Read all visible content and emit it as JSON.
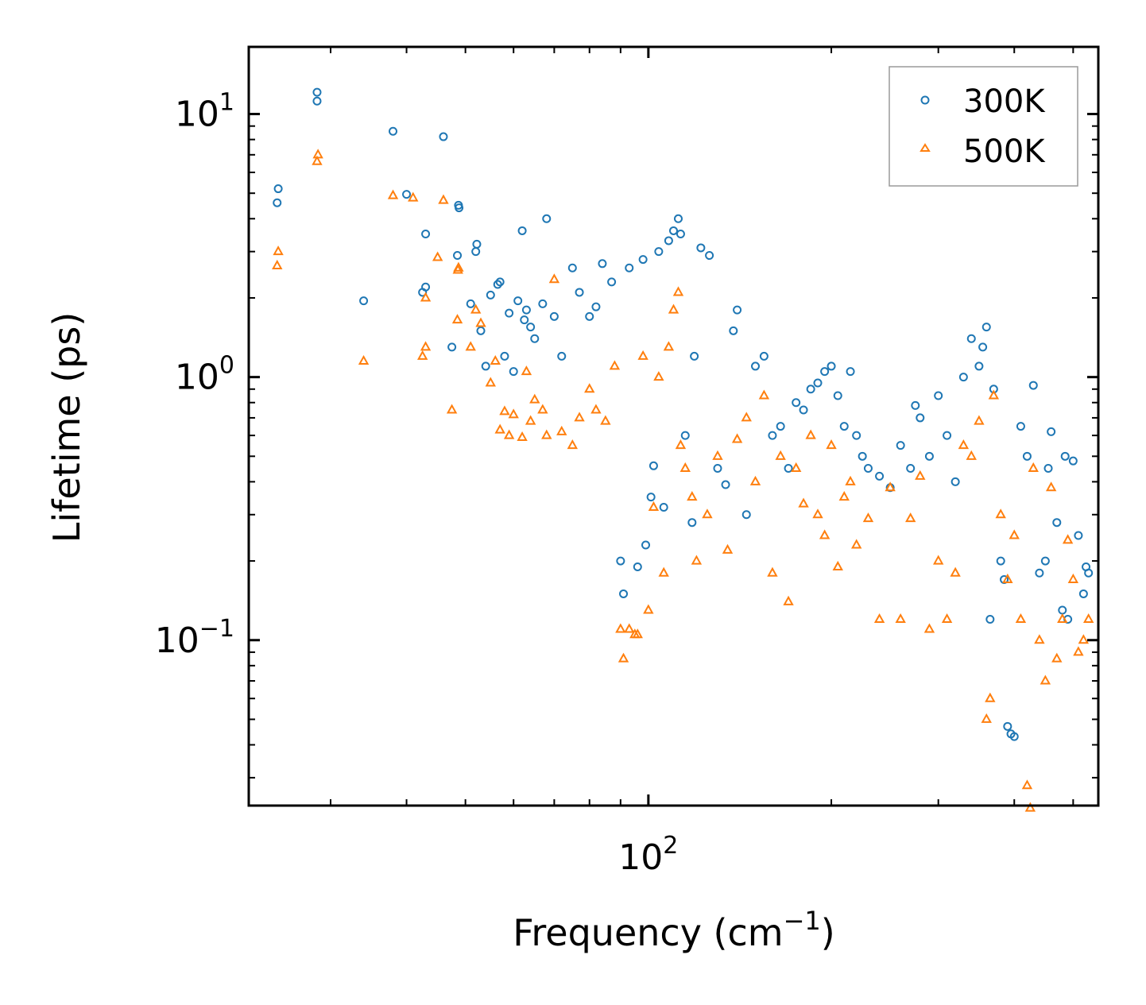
{
  "chart_data": {
    "type": "scatter",
    "title": "",
    "xlabel": "Frequency (cm⁻¹)",
    "xlabel_main": "Frequency (cm",
    "xlabel_sup": "−1",
    "xlabel_close": ")",
    "ylabel": "Lifetime (ps)",
    "xscale": "log",
    "yscale": "log",
    "xlim": [
      22,
      550
    ],
    "ylim": [
      0.0235,
      18
    ],
    "x_ticks": [
      {
        "value": 100,
        "base": "10",
        "exp": "2"
      }
    ],
    "y_ticks": [
      {
        "value": 10,
        "base": "10",
        "exp": "1"
      },
      {
        "value": 1,
        "base": "10",
        "exp": "0"
      },
      {
        "value": 0.1,
        "base": "10",
        "exp": "−1"
      }
    ],
    "legend_position": "top-right",
    "series": [
      {
        "name": "300K",
        "marker": "circle",
        "color": "#1f77b4",
        "points": [
          [
            24.5,
            4.6
          ],
          [
            24.6,
            5.2
          ],
          [
            28.5,
            11.2
          ],
          [
            28.5,
            12.1
          ],
          [
            34,
            1.95
          ],
          [
            38,
            8.6
          ],
          [
            40,
            4.95
          ],
          [
            42.5,
            2.1
          ],
          [
            43,
            2.2
          ],
          [
            43,
            3.5
          ],
          [
            46,
            8.2
          ],
          [
            47.5,
            1.3
          ],
          [
            48.5,
            2.9
          ],
          [
            48.7,
            4.5
          ],
          [
            48.8,
            4.4
          ],
          [
            51,
            1.9
          ],
          [
            52,
            3.0
          ],
          [
            52.2,
            3.2
          ],
          [
            53,
            1.5
          ],
          [
            54,
            1.1
          ],
          [
            55,
            2.05
          ],
          [
            56.5,
            2.25
          ],
          [
            57,
            2.3
          ],
          [
            58,
            1.2
          ],
          [
            59,
            1.75
          ],
          [
            60,
            1.05
          ],
          [
            61,
            1.95
          ],
          [
            62,
            3.6
          ],
          [
            62.5,
            1.65
          ],
          [
            63,
            1.8
          ],
          [
            64,
            1.55
          ],
          [
            65,
            1.4
          ],
          [
            67,
            1.9
          ],
          [
            68,
            4.0
          ],
          [
            70,
            1.7
          ],
          [
            72,
            1.2
          ],
          [
            75,
            2.6
          ],
          [
            77,
            2.1
          ],
          [
            80,
            1.7
          ],
          [
            82,
            1.85
          ],
          [
            84,
            2.7
          ],
          [
            87,
            2.3
          ],
          [
            90,
            0.2
          ],
          [
            91,
            0.15
          ],
          [
            93,
            2.6
          ],
          [
            96,
            0.19
          ],
          [
            98,
            2.8
          ],
          [
            99,
            0.23
          ],
          [
            101,
            0.35
          ],
          [
            102,
            0.46
          ],
          [
            104,
            3.0
          ],
          [
            106,
            0.32
          ],
          [
            108,
            3.3
          ],
          [
            110,
            3.6
          ],
          [
            112,
            4.0
          ],
          [
            113,
            3.5
          ],
          [
            115,
            0.6
          ],
          [
            118,
            0.28
          ],
          [
            119,
            1.2
          ],
          [
            122,
            3.1
          ],
          [
            126,
            2.9
          ],
          [
            130,
            0.45
          ],
          [
            134,
            0.39
          ],
          [
            138,
            1.5
          ],
          [
            140,
            1.8
          ],
          [
            145,
            0.3
          ],
          [
            150,
            1.1
          ],
          [
            155,
            1.2
          ],
          [
            160,
            0.6
          ],
          [
            165,
            0.65
          ],
          [
            170,
            0.45
          ],
          [
            175,
            0.8
          ],
          [
            180,
            0.75
          ],
          [
            185,
            0.9
          ],
          [
            190,
            0.95
          ],
          [
            195,
            1.05
          ],
          [
            200,
            1.1
          ],
          [
            205,
            0.85
          ],
          [
            210,
            0.65
          ],
          [
            215,
            1.05
          ],
          [
            220,
            0.6
          ],
          [
            225,
            0.5
          ],
          [
            230,
            0.45
          ],
          [
            240,
            0.42
          ],
          [
            250,
            0.38
          ],
          [
            260,
            0.55
          ],
          [
            270,
            0.45
          ],
          [
            275,
            0.78
          ],
          [
            280,
            0.7
          ],
          [
            290,
            0.5
          ],
          [
            300,
            0.85
          ],
          [
            310,
            0.6
          ],
          [
            320,
            0.4
          ],
          [
            330,
            1.0
          ],
          [
            340,
            1.4
          ],
          [
            350,
            1.1
          ],
          [
            355,
            1.3
          ],
          [
            360,
            1.55
          ],
          [
            365,
            0.12
          ],
          [
            370,
            0.9
          ],
          [
            380,
            0.2
          ],
          [
            385,
            0.17
          ],
          [
            390,
            0.047
          ],
          [
            395,
            0.044
          ],
          [
            400,
            0.043
          ],
          [
            410,
            0.65
          ],
          [
            420,
            0.5
          ],
          [
            430,
            0.93
          ],
          [
            440,
            0.18
          ],
          [
            450,
            0.2
          ],
          [
            455,
            0.45
          ],
          [
            460,
            0.62
          ],
          [
            470,
            0.28
          ],
          [
            480,
            0.13
          ],
          [
            485,
            0.5
          ],
          [
            490,
            0.12
          ],
          [
            500,
            0.48
          ],
          [
            510,
            0.25
          ],
          [
            520,
            0.15
          ],
          [
            525,
            0.19
          ],
          [
            530,
            0.18
          ]
        ]
      },
      {
        "name": "500K",
        "marker": "triangle",
        "color": "#ff7f0e",
        "points": [
          [
            24.5,
            2.65
          ],
          [
            24.6,
            3.0
          ],
          [
            28.5,
            6.6
          ],
          [
            28.6,
            7.0
          ],
          [
            34,
            1.15
          ],
          [
            38,
            4.9
          ],
          [
            41,
            4.8
          ],
          [
            42.5,
            1.2
          ],
          [
            43,
            1.3
          ],
          [
            43,
            2.0
          ],
          [
            45,
            2.85
          ],
          [
            46,
            4.7
          ],
          [
            47.5,
            0.75
          ],
          [
            48.5,
            1.65
          ],
          [
            48.6,
            2.55
          ],
          [
            48.7,
            2.6
          ],
          [
            51,
            1.3
          ],
          [
            52,
            1.8
          ],
          [
            53,
            1.6
          ],
          [
            55,
            0.95
          ],
          [
            56,
            1.15
          ],
          [
            57,
            0.63
          ],
          [
            58,
            0.74
          ],
          [
            59,
            0.6
          ],
          [
            60,
            0.72
          ],
          [
            62,
            0.59
          ],
          [
            63,
            1.05
          ],
          [
            64,
            0.68
          ],
          [
            65,
            0.82
          ],
          [
            67,
            0.75
          ],
          [
            68,
            0.6
          ],
          [
            70,
            2.35
          ],
          [
            72,
            0.62
          ],
          [
            75,
            0.55
          ],
          [
            77,
            0.7
          ],
          [
            80,
            0.9
          ],
          [
            82,
            0.75
          ],
          [
            85,
            0.68
          ],
          [
            88,
            1.1
          ],
          [
            90,
            0.11
          ],
          [
            91,
            0.085
          ],
          [
            93,
            0.11
          ],
          [
            95,
            0.105
          ],
          [
            96,
            0.105
          ],
          [
            98,
            1.2
          ],
          [
            100,
            0.13
          ],
          [
            102,
            0.32
          ],
          [
            104,
            1.0
          ],
          [
            106,
            0.18
          ],
          [
            108,
            1.3
          ],
          [
            110,
            1.8
          ],
          [
            112,
            2.1
          ],
          [
            113,
            0.55
          ],
          [
            115,
            0.45
          ],
          [
            118,
            0.35
          ],
          [
            120,
            0.2
          ],
          [
            125,
            0.3
          ],
          [
            130,
            0.5
          ],
          [
            135,
            0.22
          ],
          [
            140,
            0.58
          ],
          [
            145,
            0.7
          ],
          [
            150,
            0.4
          ],
          [
            155,
            0.85
          ],
          [
            160,
            0.18
          ],
          [
            165,
            0.5
          ],
          [
            170,
            0.14
          ],
          [
            175,
            0.45
          ],
          [
            180,
            0.33
          ],
          [
            185,
            0.6
          ],
          [
            190,
            0.3
          ],
          [
            195,
            0.25
          ],
          [
            200,
            0.55
          ],
          [
            205,
            0.19
          ],
          [
            210,
            0.35
          ],
          [
            215,
            0.4
          ],
          [
            220,
            0.23
          ],
          [
            230,
            0.29
          ],
          [
            240,
            0.12
          ],
          [
            250,
            0.38
          ],
          [
            260,
            0.12
          ],
          [
            270,
            0.29
          ],
          [
            280,
            0.42
          ],
          [
            290,
            0.11
          ],
          [
            300,
            0.2
          ],
          [
            310,
            0.12
          ],
          [
            320,
            0.18
          ],
          [
            330,
            0.55
          ],
          [
            340,
            0.5
          ],
          [
            350,
            0.68
          ],
          [
            360,
            0.05
          ],
          [
            365,
            0.06
          ],
          [
            370,
            0.85
          ],
          [
            380,
            0.3
          ],
          [
            390,
            0.17
          ],
          [
            400,
            0.25
          ],
          [
            410,
            0.12
          ],
          [
            420,
            0.028
          ],
          [
            425,
            0.023
          ],
          [
            430,
            0.45
          ],
          [
            440,
            0.1
          ],
          [
            450,
            0.07
          ],
          [
            460,
            0.38
          ],
          [
            470,
            0.085
          ],
          [
            480,
            0.12
          ],
          [
            490,
            0.24
          ],
          [
            500,
            0.17
          ],
          [
            510,
            0.09
          ],
          [
            520,
            0.1
          ],
          [
            530,
            0.12
          ]
        ]
      }
    ]
  }
}
